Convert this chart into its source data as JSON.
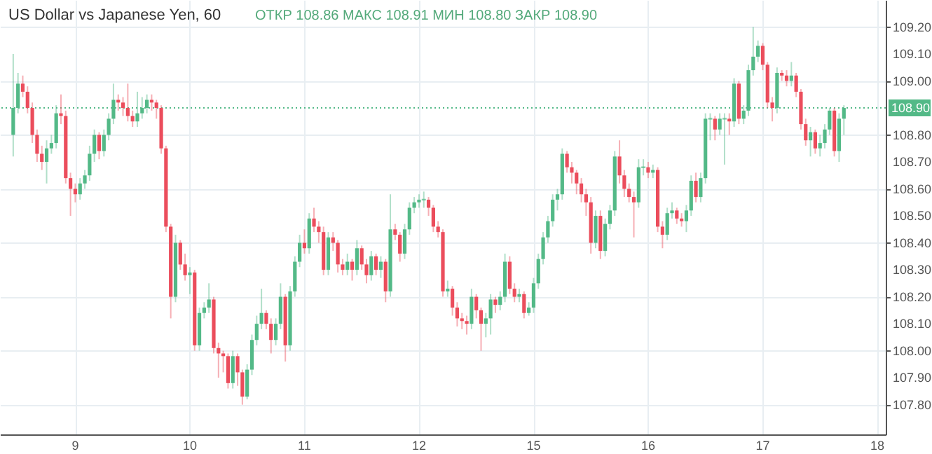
{
  "chart_data": {
    "type": "candlestick",
    "title": "US Dollar vs Japanese Yen, 60",
    "subtitle": "ОТКР 108.86 МАКС 108.91 МИН 108.80 ЗАКР 108.90",
    "colors": [
      "#53b987",
      "#53b987",
      "#eb4d5c",
      "#eb4d5c",
      "#eb4d5c",
      "#eb4d5c",
      "#eb4d5c",
      "#53b987",
      "#53b987",
      "#53b987",
      "#eb4d5c",
      "#eb4d5c",
      "#eb4d5c",
      "#eb4d5c",
      "#53b987",
      "#53b987",
      "#53b987",
      "#53b987",
      "#eb4d5c",
      "#53b987",
      "#53b987",
      "#53b987",
      "#eb4d5c",
      "#eb4d5c",
      "#eb4d5c",
      "#eb4d5c",
      "#53b987",
      "#53b987",
      "#53b987",
      "#eb4d5c",
      "#eb4d5c",
      "#eb4d5c",
      "#eb4d5c",
      "#eb4d5c",
      "#53b987",
      "#eb4d5c",
      "#eb4d5c",
      "#53b987",
      "#eb4d5c",
      "#53b987",
      "#53b987",
      "#53b987",
      "#eb4d5c",
      "#eb4d5c",
      "#eb4d5c",
      "#eb4d5c",
      "#53b987",
      "#eb4d5c",
      "#eb4d5c",
      "#53b987",
      "#53b987",
      "#53b987",
      "#53b987",
      "#eb4d5c",
      "#eb4d5c",
      "#53b987",
      "#53b987",
      "#eb4d5c",
      "#53b987",
      "#53b987",
      "#53b987",
      "#eb4d5c",
      "#53b987",
      "#eb4d5c",
      "#eb4d5c",
      "#eb4d5c",
      "#53b987",
      "#eb4d5c",
      "#eb4d5c",
      "#eb4d5c",
      "#53b987",
      "#eb4d5c",
      "#53b987",
      "#eb4d5c",
      "#eb4d5c",
      "#53b987",
      "#eb4d5c",
      "#53b987",
      "#eb4d5c",
      "#53b987",
      "#eb4d5c",
      "#eb4d5c",
      "#53b987",
      "#53b987",
      "#53b987",
      "#53b987",
      "#53b987",
      "#eb4d5c",
      "#eb4d5c",
      "#eb4d5c",
      "#eb4d5c",
      "#53b987",
      "#eb4d5c",
      "#eb4d5c",
      "#eb4d5c",
      "#eb4d5c",
      "#53b987",
      "#eb4d5c",
      "#eb4d5c",
      "#53b987",
      "#53b987",
      "#eb4d5c",
      "#53b987",
      "#53b987",
      "#eb4d5c",
      "#eb4d5c",
      "#53b987",
      "#eb4d5c",
      "#53b987",
      "#53b987",
      "#53b987",
      "#53b987",
      "#53b987",
      "#53b987",
      "#53b987",
      "#53b987",
      "#eb4d5c",
      "#eb4d5c",
      "#eb4d5c",
      "#eb4d5c",
      "#eb4d5c",
      "#eb4d5c",
      "#53b987",
      "#eb4d5c",
      "#53b987",
      "#53b987",
      "#53b987",
      "#eb4d5c",
      "#eb4d5c",
      "#eb4d5c",
      "#eb4d5c",
      "#53b987",
      "#53b987",
      "#eb4d5c",
      "#53b987",
      "#eb4d5c",
      "#eb4d5c",
      "#53b987",
      "#53b987",
      "#eb4d5c",
      "#eb4d5c",
      "#53b987",
      "#53b987",
      "#eb4d5c",
      "#53b987",
      "#53b987",
      "#53b987",
      "#eb4d5c",
      "#53b987",
      "#53b987",
      "#eb4d5c",
      "#53b987",
      "#eb4d5c",
      "#53b987",
      "#53b987",
      "#53b987",
      "#53b987",
      "#eb4d5c",
      "#eb4d5c",
      "#eb4d5c",
      "#53b987",
      "#eb4d5c",
      "#eb4d5c",
      "#53b987",
      "#eb4d5c",
      "#eb4d5c",
      "#eb4d5c",
      "#53b987",
      "#eb4d5c",
      "#53b987",
      "#53b987",
      "#53b987",
      "#eb4d5c",
      "#53b987",
      "#53b987",
      null,
      null,
      null,
      null,
      null,
      null,
      null
    ],
    "categories": [
      null,
      null,
      null,
      null,
      null,
      null,
      null,
      null,
      null,
      null,
      null,
      null,
      null,
      "9",
      null,
      null,
      null,
      null,
      null,
      null,
      null,
      null,
      null,
      null,
      null,
      null,
      null,
      null,
      null,
      null,
      null,
      null,
      null,
      null,
      null,
      null,
      null,
      "10",
      null,
      null,
      null,
      null,
      null,
      null,
      null,
      null,
      null,
      null,
      null,
      null,
      null,
      null,
      null,
      null,
      null,
      null,
      null,
      null,
      null,
      null,
      null,
      "11",
      null,
      null,
      null,
      null,
      null,
      null,
      null,
      null,
      null,
      null,
      null,
      null,
      null,
      null,
      null,
      null,
      null,
      null,
      null,
      null,
      null,
      null,
      null,
      "12",
      null,
      null,
      null,
      null,
      null,
      null,
      null,
      null,
      null,
      null,
      null,
      null,
      null,
      null,
      null,
      null,
      null,
      null,
      null,
      null,
      null,
      null,
      null,
      "15",
      null,
      null,
      null,
      null,
      null,
      null,
      null,
      null,
      null,
      null,
      null,
      null,
      null,
      null,
      null,
      null,
      null,
      null,
      null,
      null,
      null,
      null,
      null,
      "16",
      null,
      null,
      null,
      null,
      null,
      null,
      null,
      null,
      null,
      null,
      null,
      null,
      null,
      null,
      null,
      null,
      null,
      null,
      null,
      null,
      null,
      null,
      null,
      "17",
      null,
      null,
      null,
      null,
      null,
      null,
      null,
      null,
      null,
      null,
      null,
      null,
      null,
      null,
      null,
      null,
      null,
      null,
      null,
      null,
      null,
      null,
      null,
      "18"
    ],
    "ohlc": [
      [
        108.8,
        109.1,
        108.72,
        108.9
      ],
      [
        108.9,
        109.03,
        108.88,
        108.99
      ],
      [
        108.99,
        109.02,
        108.94,
        108.96
      ],
      [
        108.96,
        108.98,
        108.88,
        108.9
      ],
      [
        108.9,
        108.92,
        108.77,
        108.8
      ],
      [
        108.8,
        108.82,
        108.7,
        108.73
      ],
      [
        108.73,
        108.76,
        108.67,
        108.7
      ],
      [
        108.7,
        108.78,
        108.62,
        108.75
      ],
      [
        108.75,
        108.8,
        108.73,
        108.77
      ],
      [
        108.77,
        108.91,
        108.75,
        108.88
      ],
      [
        108.88,
        108.95,
        108.84,
        108.87
      ],
      [
        108.87,
        108.89,
        108.62,
        108.64
      ],
      [
        108.64,
        108.66,
        108.5,
        108.6
      ],
      [
        108.6,
        108.62,
        108.55,
        108.58
      ],
      [
        108.58,
        108.64,
        108.56,
        108.62
      ],
      [
        108.62,
        108.67,
        108.6,
        108.65
      ],
      [
        108.65,
        108.76,
        108.63,
        108.73
      ],
      [
        108.73,
        108.82,
        108.7,
        108.8
      ],
      [
        108.8,
        108.81,
        108.71,
        108.74
      ],
      [
        108.74,
        108.82,
        108.72,
        108.8
      ],
      [
        108.8,
        108.88,
        108.78,
        108.86
      ],
      [
        108.86,
        108.99,
        108.84,
        108.93
      ],
      [
        108.93,
        108.95,
        108.89,
        108.92
      ],
      [
        108.92,
        108.94,
        108.87,
        108.9
      ],
      [
        108.9,
        108.99,
        108.85,
        108.87
      ],
      [
        108.87,
        108.89,
        108.83,
        108.85
      ],
      [
        108.85,
        108.96,
        108.83,
        108.88
      ],
      [
        108.88,
        108.94,
        108.86,
        108.9
      ],
      [
        108.9,
        108.95,
        108.88,
        108.93
      ],
      [
        108.93,
        108.95,
        108.89,
        108.92
      ],
      [
        108.92,
        108.93,
        108.86,
        108.9
      ],
      [
        108.9,
        108.91,
        108.73,
        108.75
      ],
      [
        108.75,
        108.76,
        108.44,
        108.46
      ],
      [
        108.46,
        108.47,
        108.12,
        108.2
      ],
      [
        108.2,
        108.43,
        108.18,
        108.4
      ],
      [
        108.4,
        108.41,
        108.3,
        108.32
      ],
      [
        108.32,
        108.36,
        108.26,
        108.28
      ],
      [
        108.28,
        108.31,
        108.21,
        108.29
      ],
      [
        108.29,
        108.3,
        108.0,
        108.02
      ],
      [
        108.02,
        108.16,
        108.0,
        108.14
      ],
      [
        108.14,
        108.18,
        108.12,
        108.16
      ],
      [
        108.16,
        108.25,
        108.14,
        108.19
      ],
      [
        108.19,
        108.2,
        107.99,
        108.01
      ],
      [
        108.01,
        108.03,
        107.9,
        107.99
      ],
      [
        107.99,
        108.0,
        107.92,
        107.98
      ],
      [
        107.98,
        107.99,
        107.86,
        107.88
      ],
      [
        107.88,
        108.0,
        107.86,
        107.98
      ],
      [
        107.98,
        107.99,
        107.87,
        107.92
      ],
      [
        107.92,
        107.93,
        107.8,
        107.83
      ],
      [
        107.83,
        107.95,
        107.82,
        107.93
      ],
      [
        107.93,
        108.06,
        107.91,
        108.04
      ],
      [
        108.04,
        108.13,
        108.02,
        108.1
      ],
      [
        108.1,
        108.23,
        108.08,
        108.14
      ],
      [
        108.14,
        108.15,
        108.08,
        108.1
      ],
      [
        108.1,
        108.12,
        107.99,
        108.04
      ],
      [
        108.04,
        108.12,
        108.02,
        108.1
      ],
      [
        108.1,
        108.25,
        108.08,
        108.2
      ],
      [
        108.2,
        108.21,
        107.96,
        108.02
      ],
      [
        108.02,
        108.24,
        108.0,
        108.22
      ],
      [
        108.22,
        108.35,
        108.2,
        108.33
      ],
      [
        108.33,
        108.43,
        108.31,
        108.4
      ],
      [
        108.4,
        108.45,
        108.36,
        108.38
      ],
      [
        108.38,
        108.51,
        108.36,
        108.49
      ],
      [
        108.49,
        108.53,
        108.44,
        108.46
      ],
      [
        108.46,
        108.48,
        108.4,
        108.44
      ],
      [
        108.44,
        108.46,
        108.28,
        108.3
      ],
      [
        108.3,
        108.44,
        108.28,
        108.42
      ],
      [
        108.42,
        108.44,
        108.37,
        108.4
      ],
      [
        108.4,
        108.41,
        108.29,
        108.32
      ],
      [
        108.32,
        108.34,
        108.28,
        108.3
      ],
      [
        108.3,
        108.36,
        108.28,
        108.33
      ],
      [
        108.33,
        108.34,
        108.26,
        108.3
      ],
      [
        108.3,
        108.41,
        108.28,
        108.38
      ],
      [
        108.38,
        108.39,
        108.3,
        108.32
      ],
      [
        108.32,
        108.34,
        108.25,
        108.28
      ],
      [
        108.28,
        108.37,
        108.26,
        108.35
      ],
      [
        108.35,
        108.36,
        108.28,
        108.3
      ],
      [
        108.3,
        108.35,
        108.27,
        108.33
      ],
      [
        108.33,
        108.34,
        108.18,
        108.22
      ],
      [
        108.22,
        108.58,
        108.2,
        108.45
      ],
      [
        108.45,
        108.47,
        108.41,
        108.43
      ],
      [
        108.43,
        108.44,
        108.33,
        108.36
      ],
      [
        108.36,
        108.47,
        108.34,
        108.45
      ],
      [
        108.45,
        108.55,
        108.43,
        108.53
      ],
      [
        108.53,
        108.57,
        108.51,
        108.55
      ],
      [
        108.55,
        108.58,
        108.53,
        108.56
      ],
      [
        108.56,
        108.59,
        108.53,
        108.56
      ],
      [
        108.56,
        108.57,
        108.5,
        108.53
      ],
      [
        108.53,
        108.54,
        108.44,
        108.46
      ],
      [
        108.46,
        108.48,
        108.42,
        108.44
      ],
      [
        108.44,
        108.45,
        108.2,
        108.22
      ],
      [
        108.22,
        108.26,
        108.2,
        108.23
      ],
      [
        108.23,
        108.24,
        108.13,
        108.16
      ],
      [
        108.16,
        108.18,
        108.09,
        108.12
      ],
      [
        108.12,
        108.14,
        108.08,
        108.11
      ],
      [
        108.11,
        108.13,
        108.06,
        108.1
      ],
      [
        108.1,
        108.23,
        108.08,
        108.2
      ],
      [
        108.2,
        108.21,
        108.12,
        108.15
      ],
      [
        108.15,
        108.16,
        108.0,
        108.1
      ],
      [
        108.1,
        108.14,
        108.05,
        108.12
      ],
      [
        108.12,
        108.21,
        108.06,
        108.19
      ],
      [
        108.19,
        108.2,
        108.14,
        108.17
      ],
      [
        108.17,
        108.22,
        108.15,
        108.2
      ],
      [
        108.2,
        108.36,
        108.18,
        108.33
      ],
      [
        108.33,
        108.35,
        108.21,
        108.23
      ],
      [
        108.23,
        108.25,
        108.18,
        108.2
      ],
      [
        108.2,
        108.23,
        108.18,
        108.21
      ],
      [
        108.21,
        108.22,
        108.12,
        108.14
      ],
      [
        108.14,
        108.18,
        108.13,
        108.16
      ],
      [
        108.16,
        108.27,
        108.14,
        108.25
      ],
      [
        108.25,
        108.36,
        108.23,
        108.34
      ],
      [
        108.34,
        108.44,
        108.32,
        108.42
      ],
      [
        108.42,
        108.5,
        108.4,
        108.48
      ],
      [
        108.48,
        108.58,
        108.46,
        108.56
      ],
      [
        108.56,
        108.6,
        108.52,
        108.58
      ],
      [
        108.58,
        108.75,
        108.56,
        108.73
      ],
      [
        108.73,
        108.74,
        108.66,
        108.68
      ],
      [
        108.68,
        108.7,
        108.62,
        108.66
      ],
      [
        108.66,
        108.67,
        108.58,
        108.62
      ],
      [
        108.62,
        108.64,
        108.55,
        108.58
      ],
      [
        108.58,
        108.6,
        108.5,
        108.55
      ],
      [
        108.55,
        108.57,
        108.36,
        108.4
      ],
      [
        108.4,
        108.52,
        108.38,
        108.5
      ],
      [
        108.5,
        108.52,
        108.34,
        108.37
      ],
      [
        108.37,
        108.49,
        108.35,
        108.47
      ],
      [
        108.47,
        108.54,
        108.45,
        108.52
      ],
      [
        108.52,
        108.74,
        108.5,
        108.72
      ],
      [
        108.72,
        108.78,
        108.62,
        108.65
      ],
      [
        108.65,
        108.67,
        108.57,
        108.6
      ],
      [
        108.6,
        108.62,
        108.55,
        108.57
      ],
      [
        108.57,
        108.59,
        108.42,
        108.55
      ],
      [
        108.55,
        108.71,
        108.53,
        108.68
      ],
      [
        108.68,
        108.71,
        108.65,
        108.68
      ],
      [
        108.68,
        108.7,
        108.64,
        108.66
      ],
      [
        108.66,
        108.69,
        108.64,
        108.67
      ],
      [
        108.67,
        108.68,
        108.44,
        108.46
      ],
      [
        108.46,
        108.48,
        108.38,
        108.43
      ],
      [
        108.43,
        108.53,
        108.41,
        108.51
      ],
      [
        108.51,
        108.55,
        108.49,
        108.52
      ],
      [
        108.52,
        108.53,
        108.47,
        108.49
      ],
      [
        108.49,
        108.51,
        108.46,
        108.48
      ],
      [
        108.48,
        108.54,
        108.44,
        108.52
      ],
      [
        108.52,
        108.65,
        108.5,
        108.63
      ],
      [
        108.63,
        108.66,
        108.55,
        108.57
      ],
      [
        108.57,
        108.66,
        108.55,
        108.64
      ],
      [
        108.64,
        108.88,
        108.62,
        108.86
      ],
      [
        108.86,
        108.88,
        108.78,
        108.86
      ],
      [
        108.86,
        108.87,
        108.78,
        108.82
      ],
      [
        108.82,
        108.88,
        108.8,
        108.86
      ],
      [
        108.86,
        108.88,
        108.69,
        108.86
      ],
      [
        108.86,
        108.88,
        108.8,
        108.85
      ],
      [
        108.85,
        109.01,
        108.83,
        108.99
      ],
      [
        108.99,
        109.0,
        108.84,
        108.86
      ],
      [
        108.86,
        108.91,
        108.84,
        108.89
      ],
      [
        108.89,
        109.06,
        108.87,
        109.04
      ],
      [
        109.04,
        109.2,
        109.02,
        109.09
      ],
      [
        109.09,
        109.15,
        109.07,
        109.13
      ],
      [
        109.13,
        109.14,
        109.04,
        109.06
      ],
      [
        109.06,
        109.07,
        108.9,
        108.92
      ],
      [
        108.92,
        108.94,
        108.85,
        108.9
      ],
      [
        108.9,
        109.05,
        108.88,
        109.03
      ],
      [
        109.03,
        109.04,
        109.0,
        109.02
      ],
      [
        109.02,
        109.04,
        108.98,
        109.0
      ],
      [
        109.0,
        109.07,
        108.98,
        109.02
      ],
      [
        109.02,
        109.03,
        108.94,
        108.96
      ],
      [
        108.96,
        108.97,
        108.82,
        108.84
      ],
      [
        108.84,
        108.86,
        108.76,
        108.78
      ],
      [
        108.78,
        108.83,
        108.72,
        108.81
      ],
      [
        108.81,
        108.82,
        108.73,
        108.75
      ],
      [
        108.75,
        108.8,
        108.72,
        108.77
      ],
      [
        108.77,
        108.84,
        108.75,
        108.82
      ],
      [
        108.82,
        108.9,
        108.8,
        108.89
      ],
      [
        108.89,
        108.9,
        108.72,
        108.74
      ],
      [
        108.74,
        108.88,
        108.7,
        108.86
      ],
      [
        108.86,
        108.91,
        108.8,
        108.9
      ],
      null,
      null,
      null,
      null,
      null,
      null,
      null
    ],
    "ylim": [
      107.69,
      109.3
    ],
    "yticks": [
      {
        "value": 107.8,
        "label": "107.80"
      },
      {
        "value": 107.9,
        "label": "107.90"
      },
      {
        "value": 108.0,
        "label": "108.00"
      },
      {
        "value": 108.1,
        "label": "108.10"
      },
      {
        "value": 108.2,
        "label": "108.20"
      },
      {
        "value": 108.3,
        "label": "108.30"
      },
      {
        "value": 108.4,
        "label": "108.40"
      },
      {
        "value": 108.5,
        "label": "108.50"
      },
      {
        "value": 108.6,
        "label": "108.60"
      },
      {
        "value": 108.7,
        "label": "108.70"
      },
      {
        "value": 108.8,
        "label": "108.80"
      },
      {
        "value": 108.9,
        "label": null
      },
      {
        "value": 109.0,
        "label": "109.00"
      },
      {
        "value": 109.1,
        "label": "109.10"
      },
      {
        "value": 109.2,
        "label": "109.20"
      }
    ],
    "ref_lines": [
      {
        "axis": "y",
        "value": 108.9,
        "label": "108.90",
        "color": "#53b987",
        "line_style": "dotted"
      }
    ],
    "grid": true
  }
}
